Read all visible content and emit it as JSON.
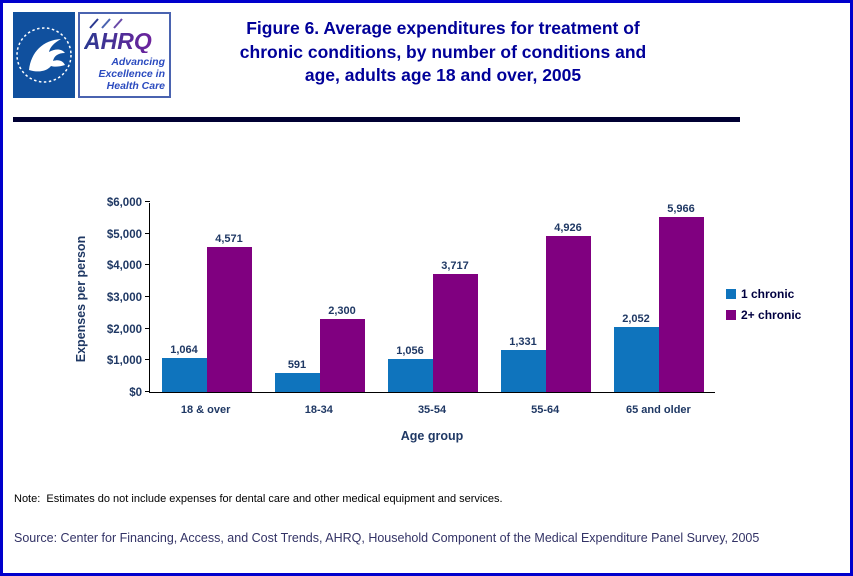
{
  "header": {
    "title": "Figure 6. Average expenditures for treatment of\nchronic conditions, by number of conditions and\nage, adults age 18 and over, 2005",
    "ahrq_acronym": "AHRQ",
    "ahrq_tagline": "Advancing\nExcellence in\nHealth Care"
  },
  "chart_data": {
    "type": "bar",
    "title": "Figure 6. Average expenditures for treatment of chronic conditions, by number of conditions and age, adults age 18 and over, 2005",
    "categories": [
      "18 & over",
      "18-34",
      "35-54",
      "55-64",
      "65 and older"
    ],
    "series": [
      {
        "name": "1 chronic",
        "color": "#0F74BD",
        "values": [
          1064,
          591,
          1056,
          1331,
          2052
        ]
      },
      {
        "name": "2+ chronic",
        "color": "#800080",
        "values": [
          4571,
          2300,
          3717,
          4926,
          5966
        ]
      }
    ],
    "value_labels": [
      [
        "1,064",
        "591",
        "1,056",
        "1,331",
        "2,052"
      ],
      [
        "4,571",
        "2,300",
        "3,717",
        "4,926",
        "5,966"
      ]
    ],
    "xlabel": "Age group",
    "ylabel": "Expenses per person",
    "ylim": [
      0,
      6000
    ],
    "ytick_step": 1000,
    "ytick_labels": [
      "$0",
      "$1,000",
      "$2,000",
      "$3,000",
      "$4,000",
      "$5,000",
      "$6,000"
    ],
    "grid": false,
    "legend_position": "right"
  },
  "note": "Note:  Estimates do not include expenses for dental care and other medical equipment and services.",
  "source": "Source: Center for Financing, Access, and Cost Trends, AHRQ, Household Component of the Medical Expenditure Panel Survey, 2005",
  "colors": {
    "page_border": "#0000CC",
    "title_text": "#000099",
    "axis_text": "#1F3864",
    "divider": "#000033",
    "source_text": "#333366"
  }
}
